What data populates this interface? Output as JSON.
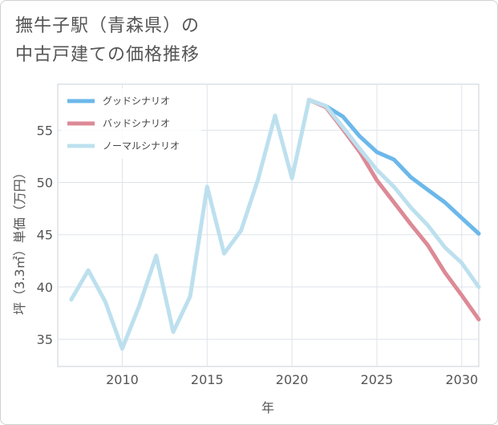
{
  "title_lines": [
    "撫牛子駅（青森県）の",
    "中古戸建ての価格推移"
  ],
  "chart_data": {
    "type": "line",
    "title": "撫牛子駅（青森県）の中古戸建ての価格推移",
    "xlabel": "年",
    "ylabel": "坪（3.3㎡）単価（万円）",
    "xlim": [
      2006.2,
      2031
    ],
    "ylim": [
      32.4,
      59.4
    ],
    "x_ticks": [
      2010,
      2015,
      2020,
      2025,
      2030
    ],
    "y_ticks": [
      35,
      40,
      45,
      50,
      55
    ],
    "grid": true,
    "legend_position": "top-left",
    "series": [
      {
        "name": "グッドシナリオ",
        "color": "#6cb8ea",
        "x": [
          2021,
          2022,
          2023,
          2024,
          2025,
          2026,
          2027,
          2028,
          2029,
          2030,
          2031
        ],
        "y": [
          57.9,
          57.3,
          56.3,
          54.4,
          52.9,
          52.2,
          50.5,
          49.3,
          48.1,
          46.6,
          45.1
        ]
      },
      {
        "name": "バッドシナリオ",
        "color": "#dc8a96",
        "x": [
          2021,
          2022,
          2023,
          2024,
          2025,
          2026,
          2027,
          2028,
          2029,
          2030,
          2031
        ],
        "y": [
          57.9,
          57.2,
          55.1,
          52.9,
          50.2,
          48.1,
          46.0,
          44.0,
          41.4,
          39.2,
          36.9
        ]
      },
      {
        "name": "ノーマルシナリオ",
        "color": "#bde0ee",
        "x": [
          2007,
          2008,
          2009,
          2010,
          2011,
          2012,
          2013,
          2014,
          2015,
          2016,
          2017,
          2018,
          2019,
          2020,
          2021,
          2022,
          2023,
          2024,
          2025,
          2026,
          2027,
          2028,
          2029,
          2030,
          2031
        ],
        "y": [
          38.8,
          41.6,
          38.6,
          34.1,
          38.2,
          43.0,
          35.7,
          39.1,
          49.6,
          43.2,
          45.4,
          50.3,
          56.4,
          50.4,
          57.9,
          57.3,
          55.3,
          53.2,
          51.2,
          49.6,
          47.6,
          45.9,
          43.8,
          42.3,
          40.0
        ]
      }
    ]
  }
}
